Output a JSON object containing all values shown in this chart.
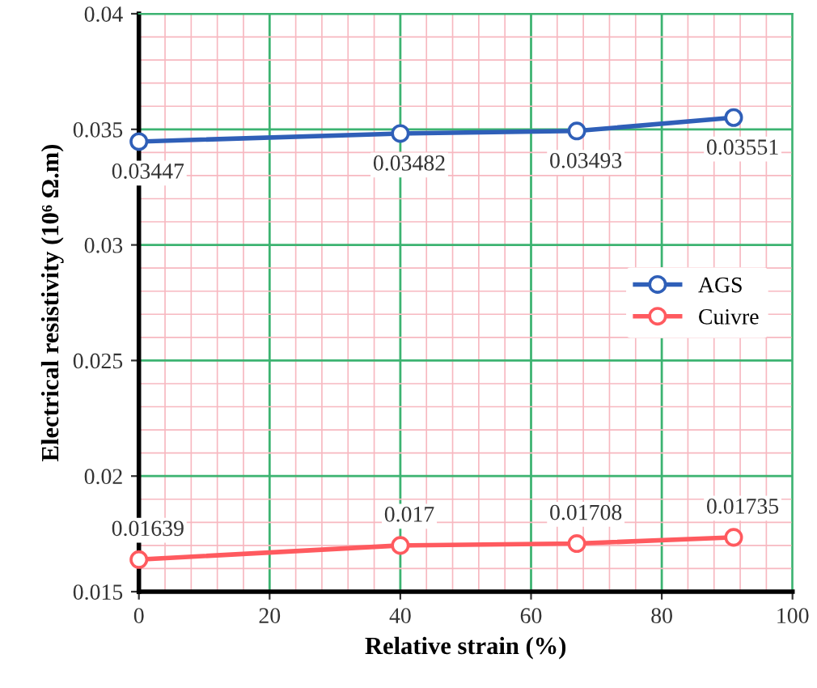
{
  "chart_data": {
    "type": "line",
    "xlabel": "Relative strain (%)",
    "ylabel": "Electrical resistivity (10⁶ Ω.m)",
    "series": [
      {
        "name": "AGS",
        "color": "#2f5fb8",
        "x": [
          0,
          40,
          67,
          91
        ],
        "values": [
          0.03447,
          0.03482,
          0.03493,
          0.03551
        ]
      },
      {
        "name": "Cuivre",
        "color": "#ff5a5f",
        "x": [
          0,
          40,
          67,
          91
        ],
        "values": [
          0.01639,
          0.017,
          0.01708,
          0.01735
        ]
      }
    ],
    "xlim": [
      0,
      100
    ],
    "xticks": [
      0,
      {
        "value": 4,
        "label": null
      },
      {
        "value": 8,
        "label": null
      },
      {
        "value": 12,
        "label": null
      },
      {
        "value": 16,
        "label": null
      },
      20,
      {
        "value": 24,
        "label": null
      },
      {
        "value": 28,
        "label": null
      },
      {
        "value": 32,
        "label": null
      },
      {
        "value": 36,
        "label": null
      },
      40,
      {
        "value": 44,
        "label": null
      },
      {
        "value": 48,
        "label": null
      },
      {
        "value": 52,
        "label": null
      },
      {
        "value": 56,
        "label": null
      },
      60,
      {
        "value": 64,
        "label": null
      },
      {
        "value": 68,
        "label": null
      },
      {
        "value": 72,
        "label": null
      },
      {
        "value": 76,
        "label": null
      },
      80,
      {
        "value": 84,
        "label": null
      },
      {
        "value": 88,
        "label": null
      },
      {
        "value": 92,
        "label": null
      },
      {
        "value": 96,
        "label": null
      },
      100
    ],
    "ylim": [
      0.015,
      0.04
    ],
    "yticks": [
      {
        "value": 0.015,
        "label": "0.015"
      },
      {
        "value": 0.016,
        "label": null
      },
      {
        "value": 0.017,
        "label": null
      },
      {
        "value": 0.018,
        "label": null
      },
      {
        "value": 0.019,
        "label": null
      },
      {
        "value": 0.02,
        "label": "0.02"
      },
      {
        "value": 0.021,
        "label": null
      },
      {
        "value": 0.022,
        "label": null
      },
      {
        "value": 0.023,
        "label": null
      },
      {
        "value": 0.024,
        "label": null
      },
      {
        "value": 0.025,
        "label": "0.025"
      },
      {
        "value": 0.026,
        "label": null
      },
      {
        "value": 0.027,
        "label": null
      },
      {
        "value": 0.028,
        "label": null
      },
      {
        "value": 0.029,
        "label": null
      },
      {
        "value": 0.03,
        "label": "0.03"
      },
      {
        "value": 0.031,
        "label": null
      },
      {
        "value": 0.032,
        "label": null
      },
      {
        "value": 0.033,
        "label": null
      },
      {
        "value": 0.034,
        "label": null
      },
      {
        "value": 0.035,
        "label": "0.035"
      },
      {
        "value": 0.036,
        "label": null
      },
      {
        "value": 0.037,
        "label": null
      },
      {
        "value": 0.038,
        "label": null
      },
      {
        "value": 0.039,
        "label": null
      },
      {
        "value": 0.04,
        "label": "0.04"
      }
    ],
    "grid": true,
    "legend": "right",
    "marker": "circle",
    "line_style": "solid",
    "data_labels": true
  }
}
